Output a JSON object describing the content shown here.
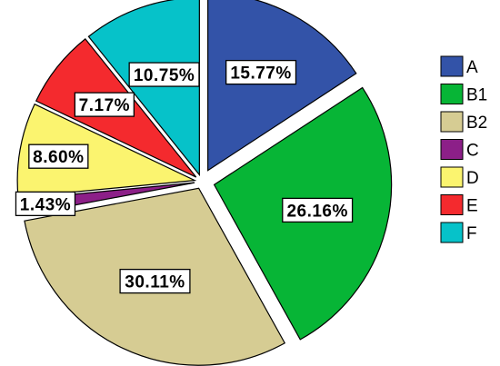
{
  "chart_data": {
    "type": "pie",
    "title": "",
    "slices": [
      {
        "name": "A",
        "value": 15.77,
        "label": "15.77%",
        "color": "#3353a8"
      },
      {
        "name": "B1",
        "value": 26.16,
        "label": "26.16%",
        "color": "#07b536"
      },
      {
        "name": "B2",
        "value": 30.11,
        "label": "30.11%",
        "color": "#d6cc93"
      },
      {
        "name": "C",
        "value": 1.43,
        "label": "1.43%",
        "color": "#8c1f88"
      },
      {
        "name": "D",
        "value": 8.6,
        "label": "8.60%",
        "color": "#fbf46f"
      },
      {
        "name": "E",
        "value": 7.17,
        "label": "7.17%",
        "color": "#f42a2e"
      },
      {
        "name": "F",
        "value": 10.75,
        "label": "10.75%",
        "color": "#06c2c9"
      }
    ],
    "exploded": true,
    "start_angle": "12 o'clock",
    "direction": "clockwise",
    "legend_position": "right"
  }
}
